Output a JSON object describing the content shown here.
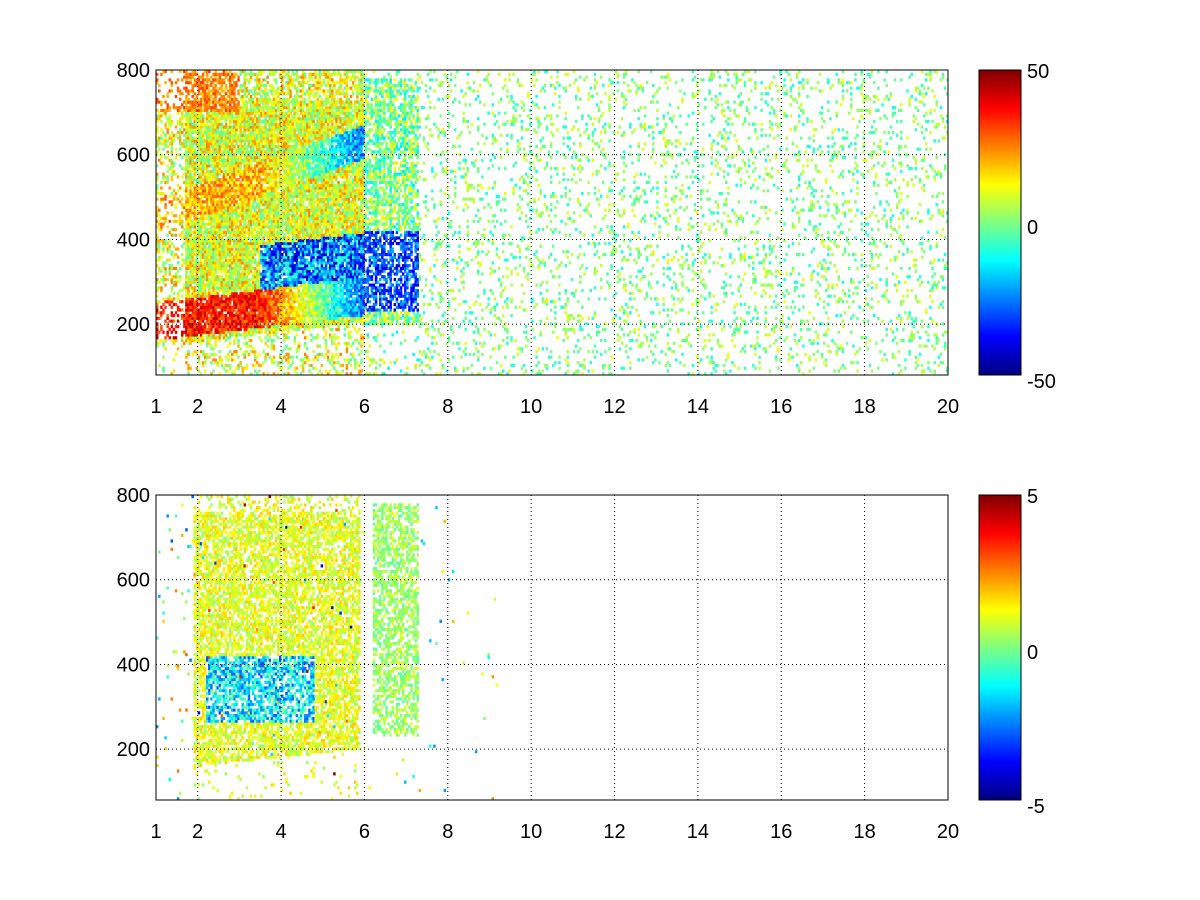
{
  "chart_data": [
    {
      "type": "heatmap",
      "title": "",
      "xlabel": "",
      "ylabel": "",
      "xlim": [
        1,
        20
      ],
      "ylim": [
        80,
        800
      ],
      "x_ticks": [
        "1",
        "2",
        "4",
        "6",
        "8",
        "10",
        "12",
        "14",
        "16",
        "18",
        "20"
      ],
      "y_ticks": [
        "200",
        "400",
        "600",
        "800"
      ],
      "grid": true,
      "colormap": "jet",
      "colorbar": {
        "range": [
          -50,
          50
        ],
        "tick_labels": [
          "50",
          "0",
          "-50"
        ]
      },
      "features": [
        {
          "x_range": [
            1.7,
            5.9
          ],
          "y_start": [
            230,
            270
          ],
          "value": 45,
          "description_free": true
        },
        {
          "x_range": [
            1.7,
            5.9
          ],
          "y_start": [
            480,
            560
          ],
          "value": 25
        }
      ]
    },
    {
      "type": "heatmap",
      "title": "",
      "xlabel": "",
      "ylabel": "",
      "xlim": [
        1,
        20
      ],
      "ylim": [
        80,
        800
      ],
      "x_ticks": [
        "1",
        "2",
        "4",
        "6",
        "8",
        "10",
        "12",
        "14",
        "16",
        "18",
        "20"
      ],
      "y_ticks": [
        "200",
        "400",
        "600",
        "800"
      ],
      "grid": true,
      "colormap": "jet",
      "colorbar": {
        "range": [
          -5,
          5
        ],
        "tick_labels": [
          "5",
          "0",
          "-5"
        ]
      }
    }
  ]
}
